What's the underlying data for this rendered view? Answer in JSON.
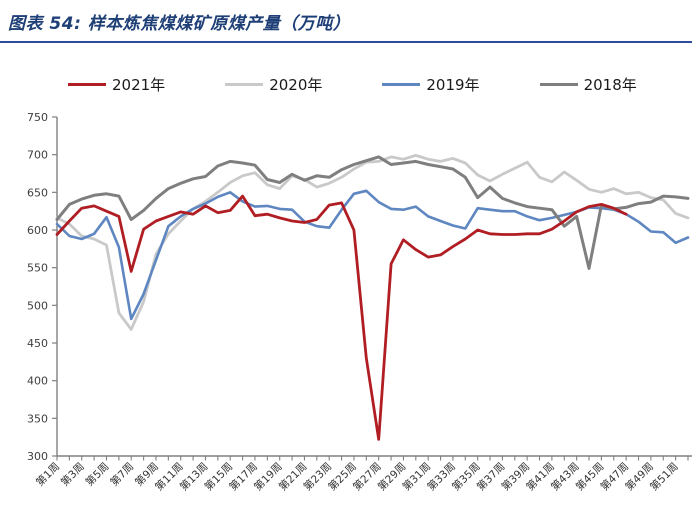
{
  "figure": {
    "title": "图表 54:  样本炼焦煤煤矿原煤产量（万吨）",
    "title_color": "#1F3F77",
    "rule_color": "#2E4C9A"
  },
  "chart_data": {
    "type": "line",
    "title": "样本炼焦煤煤矿原煤产量（万吨）",
    "legend_position": "top",
    "grid": false,
    "ylim": [
      300,
      750
    ],
    "y_ticks": [
      300,
      350,
      400,
      450,
      500,
      550,
      600,
      650,
      700,
      750
    ],
    "x_weeks": 52,
    "x_ticklabels": [
      "第1周",
      "第3周",
      "第5周",
      "第7周",
      "第9周",
      "第11周",
      "第13周",
      "第15周",
      "第17周",
      "第19周",
      "第21周",
      "第23周",
      "第25周",
      "第27周",
      "第29周",
      "第31周",
      "第33周",
      "第35周",
      "第37周",
      "第39周",
      "第41周",
      "第43周",
      "第45周",
      "第47周",
      "第49周",
      "第51周"
    ],
    "series": [
      {
        "name": "2021年",
        "color": "#B01E23",
        "values": [
          594,
          612,
          629,
          632,
          625,
          618,
          545,
          601,
          612,
          618,
          624,
          621,
          632,
          623,
          626,
          645,
          619,
          621,
          616,
          612,
          610,
          614,
          633,
          636,
          600,
          430,
          322,
          555,
          587,
          574,
          564,
          567,
          578,
          588,
          600,
          595,
          594,
          594,
          595,
          595,
          601,
          612,
          624,
          631,
          634,
          629,
          621
        ]
      },
      {
        "name": "2020年",
        "color": "#C9C9C9",
        "values": [
          616,
          608,
          592,
          588,
          580,
          490,
          468,
          505,
          568,
          595,
          612,
          628,
          638,
          650,
          663,
          672,
          676,
          660,
          655,
          672,
          667,
          657,
          662,
          670,
          681,
          690,
          691,
          697,
          694,
          699,
          694,
          691,
          695,
          689,
          673,
          665,
          674,
          682,
          690,
          670,
          664,
          677,
          666,
          654,
          650,
          655,
          648,
          650,
          643,
          640,
          622,
          616
        ]
      },
      {
        "name": "2019年",
        "color": "#5E86C1",
        "values": [
          608,
          592,
          588,
          595,
          617,
          577,
          482,
          515,
          560,
          605,
          618,
          628,
          635,
          644,
          650,
          638,
          631,
          632,
          628,
          627,
          611,
          605,
          603,
          627,
          648,
          652,
          637,
          628,
          627,
          631,
          618,
          612,
          606,
          602,
          629,
          627,
          625,
          625,
          618,
          613,
          616,
          620,
          624,
          630,
          629,
          627,
          621,
          611,
          598,
          597,
          583,
          590
        ]
      },
      {
        "name": "2018年",
        "color": "#7F7F7F",
        "values": [
          614,
          634,
          641,
          646,
          648,
          645,
          614,
          626,
          642,
          655,
          662,
          668,
          671,
          685,
          691,
          689,
          686,
          667,
          663,
          674,
          666,
          672,
          670,
          680,
          687,
          692,
          697,
          687,
          689,
          691,
          687,
          684,
          681,
          670,
          643,
          657,
          642,
          636,
          631,
          629,
          627,
          605,
          618,
          549,
          633,
          628,
          630,
          635,
          637,
          645,
          644,
          642
        ]
      }
    ]
  }
}
